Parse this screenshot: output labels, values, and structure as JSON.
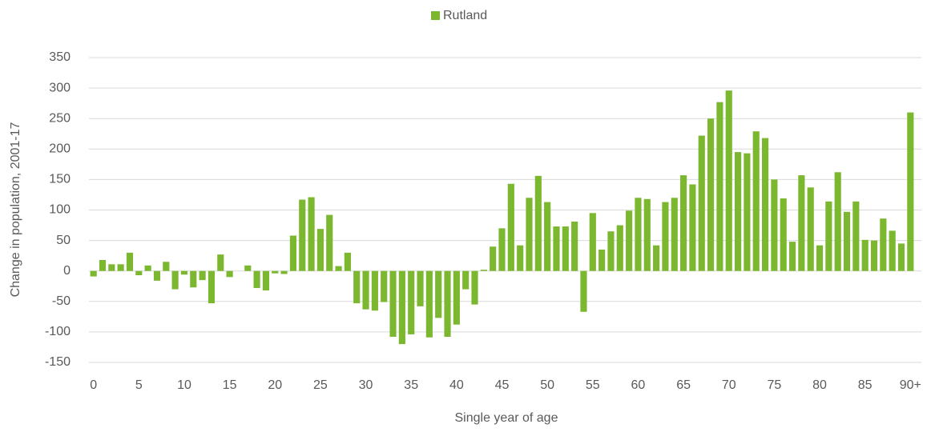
{
  "chart_data": {
    "type": "bar",
    "categories": [
      "0",
      null,
      null,
      null,
      null,
      "5",
      null,
      null,
      null,
      null,
      "10",
      null,
      null,
      null,
      null,
      "15",
      null,
      null,
      null,
      null,
      "20",
      null,
      null,
      null,
      null,
      "25",
      null,
      null,
      null,
      null,
      "30",
      null,
      null,
      null,
      null,
      "35",
      null,
      null,
      null,
      null,
      "40",
      null,
      null,
      null,
      null,
      "45",
      null,
      null,
      null,
      null,
      "50",
      null,
      null,
      null,
      null,
      "55",
      null,
      null,
      null,
      null,
      "60",
      null,
      null,
      null,
      null,
      "65",
      null,
      null,
      null,
      null,
      "70",
      null,
      null,
      null,
      null,
      "75",
      null,
      null,
      null,
      null,
      "80",
      null,
      null,
      null,
      null,
      "85",
      null,
      null,
      null,
      null,
      "90+"
    ],
    "series": [
      {
        "name": "Rutland",
        "color": "#7cb82f",
        "values": [
          -9,
          18,
          11,
          11,
          30,
          -7,
          9,
          -16,
          15,
          -30,
          -6,
          -27,
          -15,
          -53,
          27,
          -10,
          0,
          9,
          -28,
          -32,
          -4,
          -5,
          58,
          117,
          121,
          69,
          92,
          8,
          30,
          -53,
          -63,
          -65,
          -51,
          -108,
          -120,
          -104,
          -58,
          -109,
          -77,
          -108,
          -88,
          -30,
          -55,
          2,
          40,
          70,
          143,
          42,
          120,
          156,
          113,
          73,
          73,
          81,
          -67,
          95,
          35,
          65,
          75,
          99,
          120,
          118,
          42,
          113,
          120,
          157,
          142,
          222,
          250,
          277,
          296,
          195,
          193,
          229,
          218,
          150,
          119,
          48,
          157,
          137,
          42,
          114,
          162,
          97,
          114,
          51,
          50,
          86,
          66,
          45,
          260
        ]
      }
    ],
    "x_label": "Single year of age",
    "y_label": "Change in population, 2001-17",
    "ylim": [
      -150,
      350
    ],
    "yticks": [
      -150,
      -100,
      -50,
      0,
      50,
      100,
      150,
      200,
      250,
      300,
      350
    ],
    "grid": true,
    "legend": "top"
  }
}
